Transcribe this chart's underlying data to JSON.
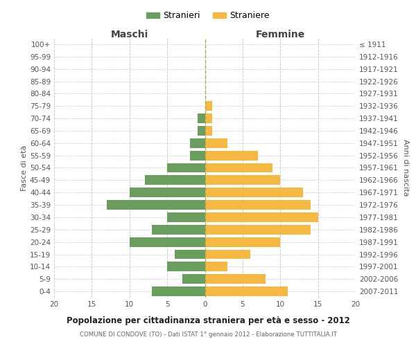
{
  "age_groups": [
    "0-4",
    "5-9",
    "10-14",
    "15-19",
    "20-24",
    "25-29",
    "30-34",
    "35-39",
    "40-44",
    "45-49",
    "50-54",
    "55-59",
    "60-64",
    "65-69",
    "70-74",
    "75-79",
    "80-84",
    "85-89",
    "90-94",
    "95-99",
    "100+"
  ],
  "birth_years": [
    "2007-2011",
    "2002-2006",
    "1997-2001",
    "1992-1996",
    "1987-1991",
    "1982-1986",
    "1977-1981",
    "1972-1976",
    "1967-1971",
    "1962-1966",
    "1957-1961",
    "1952-1956",
    "1947-1951",
    "1942-1946",
    "1937-1941",
    "1932-1936",
    "1927-1931",
    "1922-1926",
    "1917-1921",
    "1912-1916",
    "≤ 1911"
  ],
  "maschi": [
    7,
    3,
    5,
    4,
    10,
    7,
    5,
    13,
    10,
    8,
    5,
    2,
    2,
    1,
    1,
    0,
    0,
    0,
    0,
    0,
    0
  ],
  "femmine": [
    11,
    8,
    3,
    6,
    10,
    14,
    15,
    14,
    13,
    10,
    9,
    7,
    3,
    1,
    1,
    1,
    0,
    0,
    0,
    0,
    0
  ],
  "color_maschi": "#6a9e5e",
  "color_femmine": "#f5b942",
  "title": "Popolazione per cittadinanza straniera per età e sesso - 2012",
  "subtitle": "COMUNE DI CONDOVE (TO) - Dati ISTAT 1° gennaio 2012 - Elaborazione TUTTITALIA.IT",
  "ylabel_left": "Fasce di età",
  "ylabel_right": "Anni di nascita",
  "xlabel_left": "Maschi",
  "xlabel_right": "Femmine",
  "legend_maschi": "Stranieri",
  "legend_femmine": "Straniere",
  "xlim": 20,
  "background_color": "#ffffff",
  "grid_color": "#cccccc"
}
